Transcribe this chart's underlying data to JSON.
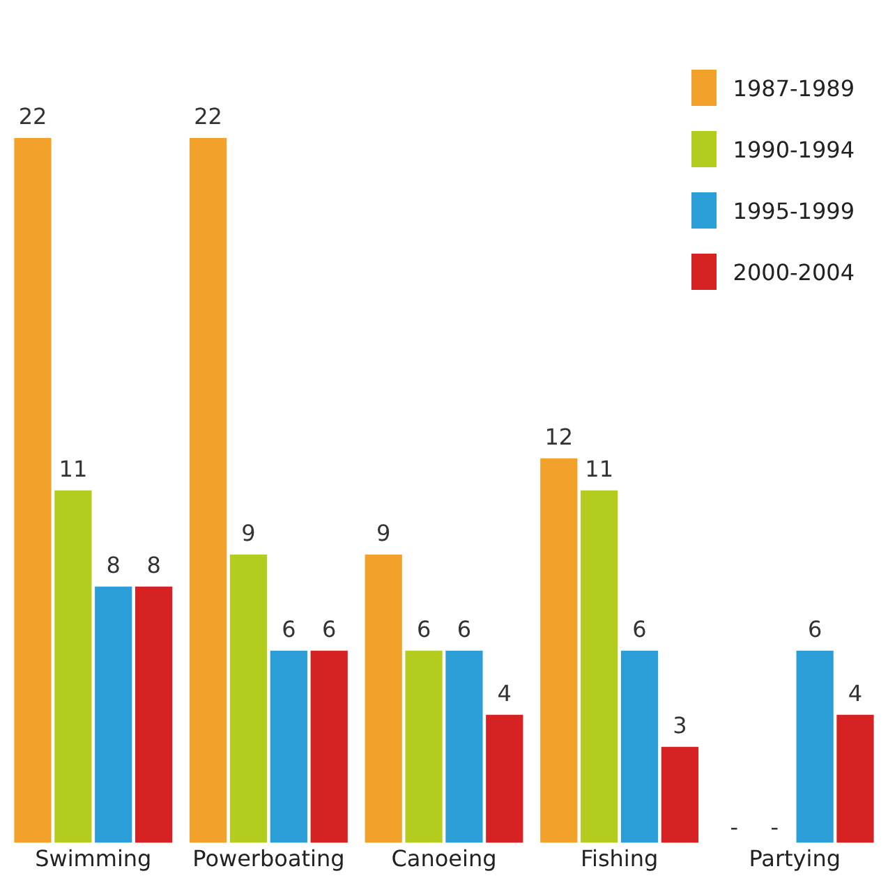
{
  "chart_data": {
    "type": "bar",
    "categories": [
      "Swimming",
      "Powerboating",
      "Canoeing",
      "Fishing",
      "Partying"
    ],
    "series": [
      {
        "name": "1987-1989",
        "color": "#f2a22a",
        "values": [
          22,
          22,
          9,
          12,
          null
        ],
        "value_labels": [
          "22",
          "22",
          "9",
          "12",
          "-"
        ]
      },
      {
        "name": "1990-1994",
        "color": "#b3cc1e",
        "values": [
          11,
          9,
          6,
          11,
          null
        ],
        "value_labels": [
          "11",
          "9",
          "6",
          "11",
          "-"
        ]
      },
      {
        "name": "1995-1999",
        "color": "#2b9ed8",
        "values": [
          8,
          6,
          6,
          6,
          6
        ],
        "value_labels": [
          "8",
          "6",
          "6",
          "6",
          "6"
        ]
      },
      {
        "name": "2000-2004",
        "color": "#d62222",
        "values": [
          8,
          6,
          4,
          3,
          4
        ],
        "value_labels": [
          "8",
          "6",
          "4",
          "3",
          "4"
        ]
      }
    ],
    "legend": "top right",
    "grid": false,
    "tick_labels": "x"
  }
}
